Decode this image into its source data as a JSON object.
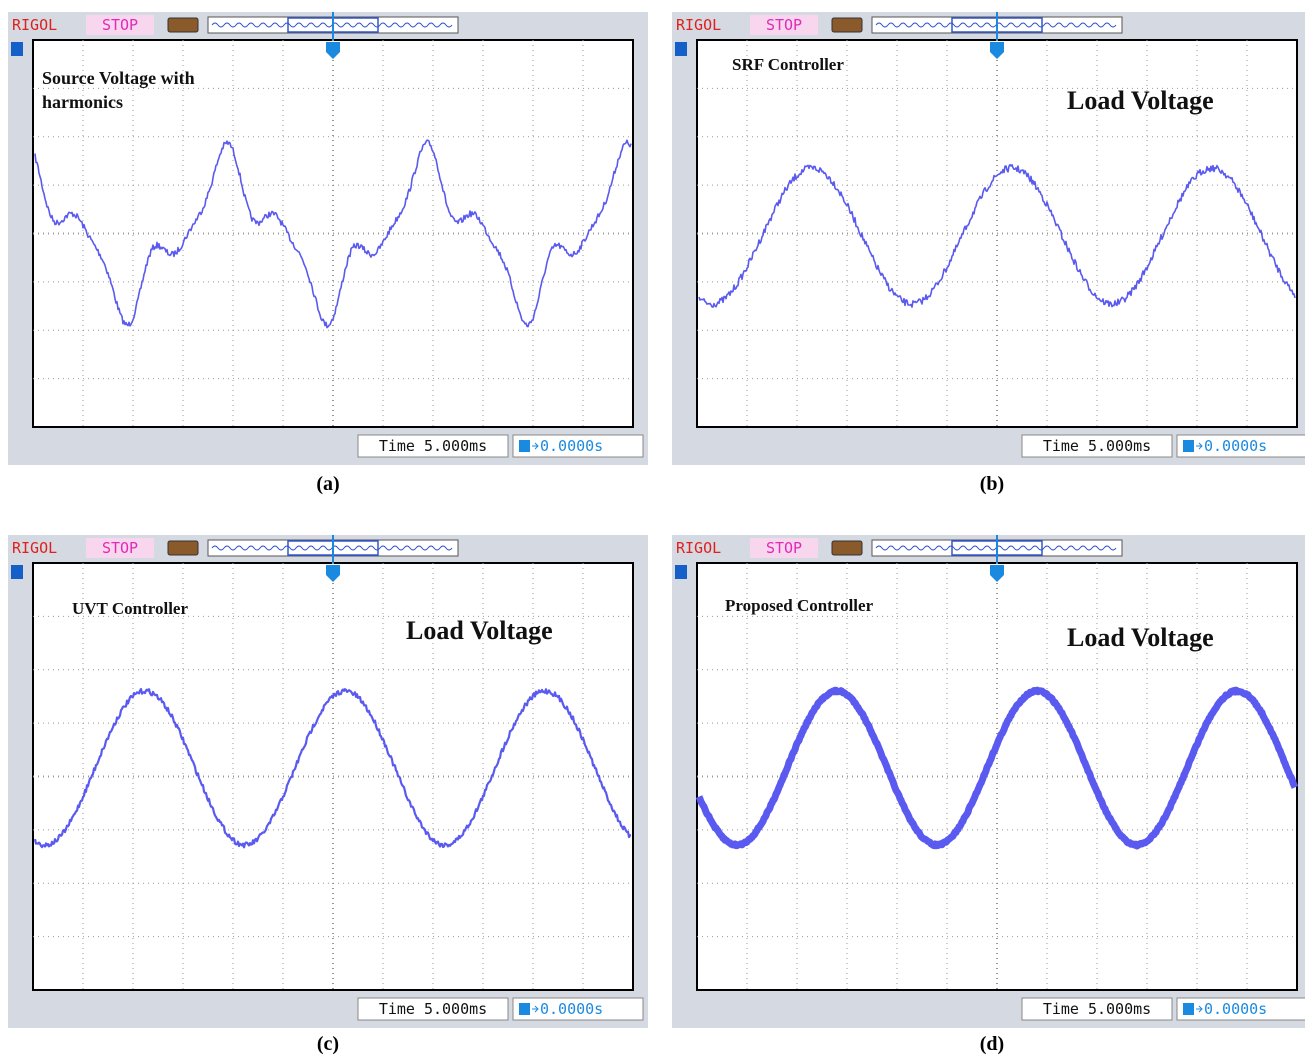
{
  "panels": [
    {
      "brand": "RIGOL",
      "status": "STOP",
      "timebase": "Time 5.000ms",
      "trigger_offset": "0.0000s",
      "annotations": [
        "Source Voltage with",
        "harmonics"
      ],
      "caption": "(a)"
    },
    {
      "brand": "RIGOL",
      "status": "STOP",
      "timebase": "Time 5.000ms",
      "trigger_offset": "0.0000s",
      "annotations": [
        "SRF Controller",
        "Load Voltage"
      ],
      "caption": "(b)"
    },
    {
      "brand": "RIGOL",
      "status": "STOP",
      "timebase": "Time 5.000ms",
      "trigger_offset": "0.0000s",
      "annotations": [
        "UVT Controller",
        "Load Voltage"
      ],
      "caption": "(c)"
    },
    {
      "brand": "RIGOL",
      "status": "STOP",
      "timebase": "Time 5.000ms",
      "trigger_offset": "0.0000s",
      "annotations": [
        "Proposed Controller",
        "Load Voltage"
      ],
      "caption": "(d)"
    }
  ]
}
